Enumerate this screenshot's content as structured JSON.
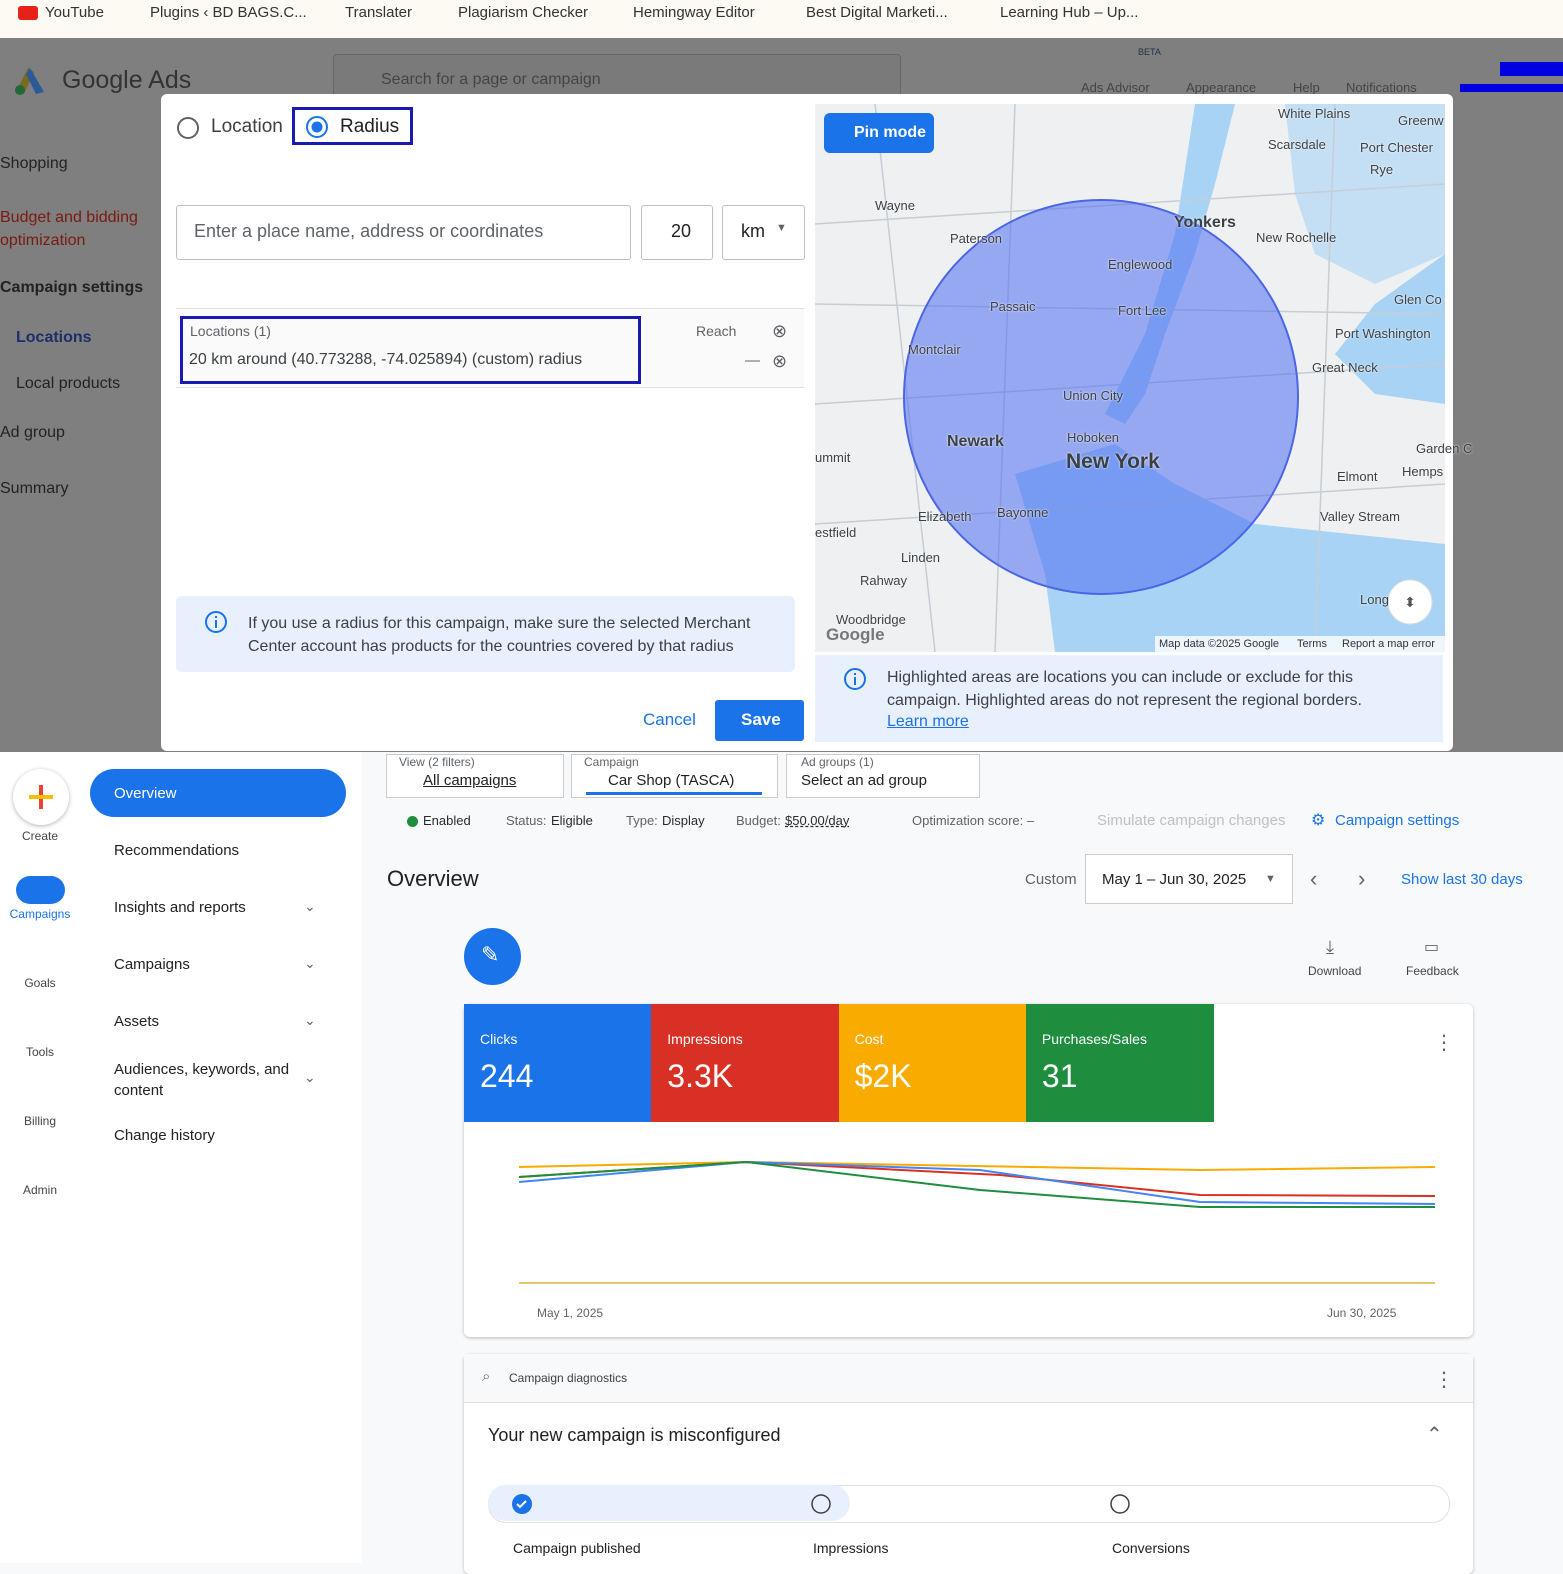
{
  "bookmarks": [
    "YouTube",
    "Plugins ‹ BD BAGS.C...",
    "Translater",
    "Plagiarism Checker",
    "Hemingway Editor",
    "Best Digital Marketi...",
    "Learning Hub – Up..."
  ],
  "header": {
    "logo": "Google Ads",
    "search": "Search for a page or campaign",
    "beta": "BETA",
    "actions": [
      "Ads Advisor",
      "Appearance",
      "Help",
      "Notifications"
    ]
  },
  "background_nav": [
    "Shopping",
    "Budget and bidding optimization",
    "Campaign settings",
    "Locations",
    "Local products",
    "Ad group",
    "Summary"
  ],
  "modal": {
    "options": [
      "Location",
      "Radius"
    ],
    "place_placeholder": "Enter a place name, address or coordinates",
    "radius": "20",
    "unit": "km",
    "locations_header": "Locations (1)",
    "reach_header": "Reach",
    "location": "20 km around (40.773288, -74.025894) (custom) radius",
    "reach": "—",
    "info": "If you use a radius for this campaign, make sure the selected Merchant Center account has products for the countries covered by that radius",
    "cancel": "Cancel",
    "save": "Save"
  },
  "map": {
    "pin_mode": "Pin mode",
    "labels": [
      "White Plains",
      "Greenw",
      "Scarsdale",
      "Port Chester",
      "Rye",
      "Wayne",
      "Yonkers",
      "Paterson",
      "New Rochelle",
      "Englewood",
      "Passaic",
      "Fort Lee",
      "Glen Co",
      "Port Washington",
      "Montclair",
      "Great Neck",
      "Union City",
      "Newark",
      "Hoboken",
      "New York",
      "Garden C",
      "Elmont",
      "Hemps",
      "Elizabeth",
      "Bayonne",
      "Valley Stream",
      "ummit",
      "estfield",
      "Linden",
      "Rahway",
      "Woodbridge",
      "Long"
    ],
    "logo": "Google",
    "attribution": [
      "Map data ©2025 Google",
      "Terms",
      "Report a map error"
    ],
    "info": "Highlighted areas are locations you can include or exclude for this campaign. Highlighted areas do not represent the regional borders.",
    "learn_more": "Learn more"
  },
  "rail": [
    "Create",
    "Campaigns",
    "Goals",
    "Tools",
    "Billing",
    "Admin"
  ],
  "nav": [
    "Overview",
    "Recommendations",
    "Insights and reports",
    "Campaigns",
    "Assets",
    "Audiences, keywords, and content",
    "Change history"
  ],
  "filters": [
    {
      "label": "View (2 filters)",
      "value": "All campaigns"
    },
    {
      "label": "Campaign",
      "value": "Car Shop (TASCA)"
    },
    {
      "label": "Ad groups (1)",
      "value": "Select an ad group"
    }
  ],
  "status": {
    "enabled": "Enabled",
    "status_label": "Status:",
    "status": "Eligible",
    "type_label": "Type:",
    "type": "Display",
    "budget_label": "Budget:",
    "budget": "$50.00/day",
    "optimization": "Optimization score: –",
    "simulate": "Simulate campaign changes",
    "settings": "Campaign settings"
  },
  "overview": {
    "title": "Overview",
    "range_label": "Custom",
    "range": "May 1 – Jun 30, 2025",
    "last_30": "Show last 30 days",
    "download": "Download",
    "feedback": "Feedback",
    "metrics": [
      {
        "name": "Clicks",
        "value": "244",
        "color": "#1a73e8"
      },
      {
        "name": "Impressions",
        "value": "3.3K",
        "color": "#d93025"
      },
      {
        "name": "Cost",
        "value": "$2K",
        "color": "#f9ab00"
      },
      {
        "name": "Purchases/Sales",
        "value": "31",
        "color": "#1e8e3e"
      }
    ],
    "x_labels": [
      "May 1, 2025",
      "Jun 30, 2025"
    ]
  },
  "diagnostics": {
    "title": "Campaign diagnostics",
    "heading": "Your new campaign is misconfigured",
    "steps": [
      "Campaign published",
      "Impressions",
      "Conversions"
    ]
  }
}
